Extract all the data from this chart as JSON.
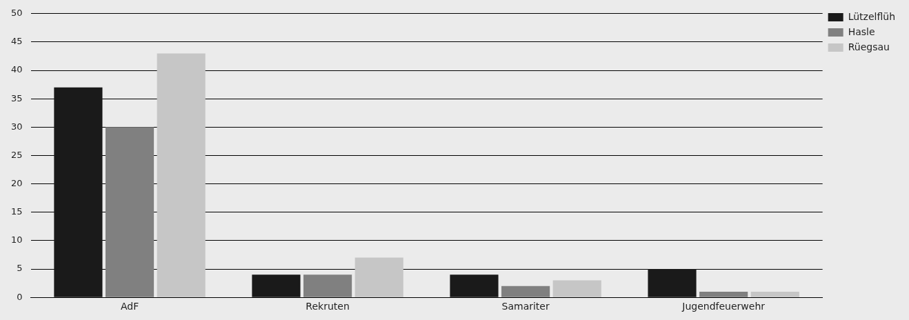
{
  "chart_data": {
    "type": "bar",
    "categories": [
      "AdF",
      "Rekruten",
      "Samariter",
      "Jugendfeuerwehr"
    ],
    "series": [
      {
        "name": "Lützelflüh",
        "color": "#1a1a1a",
        "values": [
          37,
          4,
          4,
          5
        ]
      },
      {
        "name": "Hasle",
        "color": "#808080",
        "values": [
          30,
          4,
          2,
          1
        ]
      },
      {
        "name": "Rüegsau",
        "color": "#c6c6c6",
        "values": [
          43,
          7,
          3,
          1
        ]
      }
    ],
    "ylim": [
      0,
      50
    ],
    "yticks": [
      0,
      5,
      10,
      15,
      20,
      25,
      30,
      35,
      40,
      45,
      50
    ],
    "grid": "y",
    "legend": "top right"
  }
}
